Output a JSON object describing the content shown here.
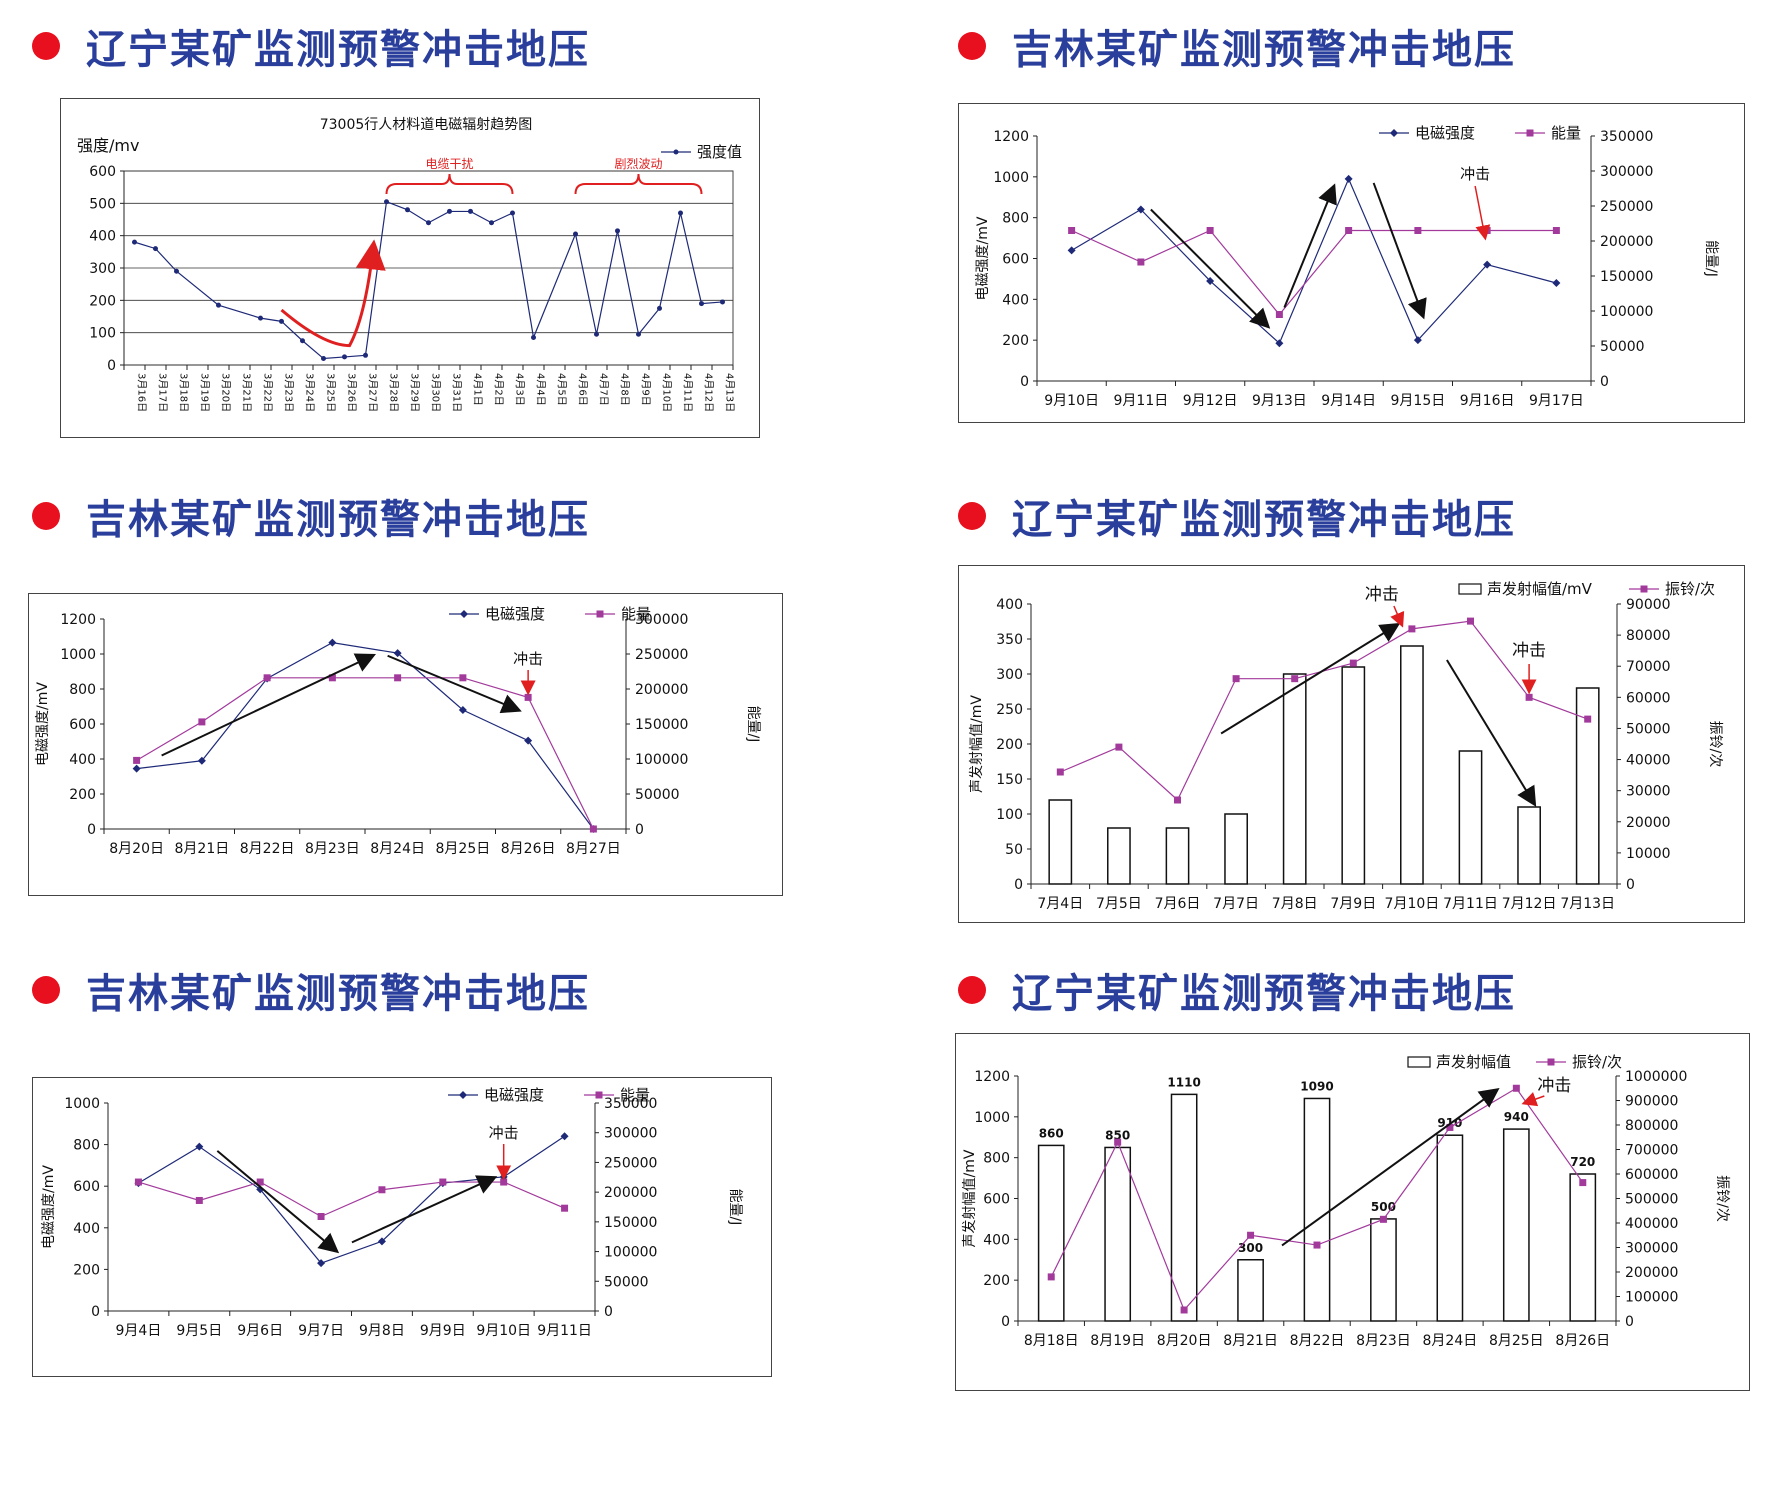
{
  "panels": [
    {
      "heading": "辽宁某矿监测预警冲击地压",
      "chart_data": {
        "type": "line",
        "title": "73005行人材料道电磁辐射趋势图",
        "ylabel": "强度/mv",
        "ylim": [
          0,
          600
        ],
        "yticks": [
          0,
          100,
          200,
          300,
          400,
          500,
          600
        ],
        "grid": true,
        "legend_position": "top-right",
        "categories": [
          "3月16日",
          "3月17日",
          "3月18日",
          "3月19日",
          "3月20日",
          "3月21日",
          "3月22日",
          "3月23日",
          "3月24日",
          "3月25日",
          "3月26日",
          "3月27日",
          "3月28日",
          "3月29日",
          "3月30日",
          "3月31日",
          "4月1日",
          "4月2日",
          "4月3日",
          "4月4日",
          "4月5日",
          "4月6日",
          "4月7日",
          "4月8日",
          "4月9日",
          "4月10日",
          "4月11日",
          "4月12日",
          "4月13日"
        ],
        "series": [
          {
            "name": "强度值",
            "color": "#1e2a78",
            "marker": "dot",
            "values": [
              380,
              360,
              290,
              null,
              185,
              null,
              145,
              135,
              75,
              20,
              25,
              30,
              505,
              480,
              440,
              475,
              475,
              440,
              470,
              85,
              null,
              405,
              95,
              415,
              95,
              175,
              470,
              190,
              195
            ]
          }
        ],
        "annotations": [
          {
            "text": "电缆干扰",
            "color": "#e02020",
            "from": 12,
            "to": 18
          },
          {
            "text": "剧烈波动",
            "color": "#e02020",
            "from": 21,
            "to": 27
          }
        ]
      }
    },
    {
      "heading": "吉林某矿监测预警冲击地压",
      "chart_data": {
        "type": "line",
        "ylabel": "电磁强度/mV",
        "y2label": "能量/J",
        "ylim": [
          0,
          1200
        ],
        "yticks": [
          0,
          200,
          400,
          600,
          800,
          1000,
          1200
        ],
        "y2lim": [
          0,
          350000
        ],
        "y2ticks": [
          0,
          50000,
          100000,
          150000,
          200000,
          250000,
          300000,
          350000
        ],
        "grid": false,
        "legend_position": "top-right",
        "categories": [
          "9月10日",
          "9月11日",
          "9月12日",
          "9月13日",
          "9月14日",
          "9月15日",
          "9月16日",
          "9月17日"
        ],
        "series": [
          {
            "name": "电磁强度",
            "axis": "left",
            "color": "#1e2a78",
            "marker": "diamond",
            "values": [
              640,
              840,
              490,
              185,
              990,
              200,
              570,
              480
            ]
          },
          {
            "name": "能量",
            "axis": "right",
            "color": "#a23a9c",
            "marker": "square",
            "values": [
              215000,
              170000,
              215000,
              95000,
              215000,
              215000,
              215000,
              215000
            ]
          }
        ],
        "impact_label": "冲击",
        "impact_index": 6
      }
    },
    {
      "heading": "吉林某矿监测预警冲击地压",
      "chart_data": {
        "type": "line",
        "ylabel": "电磁强度/mV",
        "y2label": "能量/J",
        "ylim": [
          0,
          1200
        ],
        "yticks": [
          0,
          200,
          400,
          600,
          800,
          1000,
          1200
        ],
        "y2lim": [
          0,
          300000
        ],
        "y2ticks": [
          0,
          50000,
          100000,
          150000,
          200000,
          250000,
          300000
        ],
        "grid": false,
        "legend_position": "top-right",
        "categories": [
          "8月20日",
          "8月21日",
          "8月22日",
          "8月23日",
          "8月24日",
          "8月25日",
          "8月26日",
          "8月27日"
        ],
        "series": [
          {
            "name": "电磁强度",
            "axis": "left",
            "color": "#1e2a78",
            "marker": "diamond",
            "values": [
              345,
              390,
              860,
              1065,
              1005,
              680,
              505,
              0
            ]
          },
          {
            "name": "能量",
            "axis": "right",
            "color": "#a23a9c",
            "marker": "square",
            "values": [
              98000,
              153000,
              216000,
              216000,
              216000,
              216000,
              188000,
              0
            ]
          }
        ],
        "impact_label": "冲击",
        "impact_index": 6
      }
    },
    {
      "heading": "辽宁某矿监测预警冲击地压",
      "chart_data": {
        "type": "bar",
        "ylabel": "声发射幅值/mV",
        "y2label": "振铃/次",
        "ylim": [
          0,
          400
        ],
        "yticks": [
          0,
          50,
          100,
          150,
          200,
          250,
          300,
          350,
          400
        ],
        "y2lim": [
          0,
          90000
        ],
        "y2ticks": [
          0,
          10000,
          20000,
          30000,
          40000,
          50000,
          60000,
          70000,
          80000,
          90000
        ],
        "grid": false,
        "legend_position": "top-right",
        "categories": [
          "7月4日",
          "7月5日",
          "7月6日",
          "7月7日",
          "7月8日",
          "7月9日",
          "7月10日",
          "7月11日",
          "7月12日",
          "7月13日"
        ],
        "series": [
          {
            "name": "声发射幅值/mV",
            "axis": "left",
            "kind": "bar",
            "values": [
              120,
              80,
              80,
              100,
              300,
              310,
              340,
              190,
              110,
              280
            ]
          },
          {
            "name": "振铃/次",
            "axis": "right",
            "kind": "line",
            "color": "#a23a9c",
            "marker": "square",
            "values": [
              36000,
              44000,
              27000,
              66000,
              66000,
              71000,
              82000,
              84500,
              60000,
              53000
            ]
          }
        ],
        "impact_label": "冲击",
        "impact_indices": [
          6,
          8
        ]
      }
    },
    {
      "heading": "吉林某矿监测预警冲击地压",
      "chart_data": {
        "type": "line",
        "ylabel": "电磁强度/mV",
        "y2label": "能量/J",
        "ylim": [
          0,
          1000
        ],
        "yticks": [
          0,
          200,
          400,
          600,
          800,
          1000
        ],
        "y2lim": [
          0,
          350000
        ],
        "y2ticks": [
          0,
          50000,
          100000,
          150000,
          200000,
          250000,
          300000,
          350000
        ],
        "grid": false,
        "legend_position": "top-right",
        "categories": [
          "9月4日",
          "9月5日",
          "9月6日",
          "9月7日",
          "9月8日",
          "9月9日",
          "9月10日",
          "9月11日"
        ],
        "series": [
          {
            "name": "电磁强度",
            "axis": "left",
            "color": "#1e2a78",
            "marker": "diamond",
            "values": [
              615,
              790,
              585,
              230,
              335,
              615,
              645,
              840
            ]
          },
          {
            "name": "能量",
            "axis": "right",
            "color": "#a23a9c",
            "marker": "square",
            "values": [
              217000,
              186000,
              217000,
              159000,
              204000,
              217000,
              217000,
              173000
            ]
          }
        ],
        "impact_label": "冲击",
        "impact_index": 6
      }
    },
    {
      "heading": "辽宁某矿监测预警冲击地压",
      "chart_data": {
        "type": "bar",
        "ylabel": "声发射幅值/mV",
        "y2label": "振铃/次",
        "ylim": [
          0,
          1200
        ],
        "yticks": [
          0,
          200,
          400,
          600,
          800,
          1000,
          1200
        ],
        "y2lim": [
          0,
          1000000
        ],
        "y2ticks": [
          0,
          100000,
          200000,
          300000,
          400000,
          500000,
          600000,
          700000,
          800000,
          900000,
          1000000
        ],
        "grid": false,
        "legend_position": "top-right",
        "categories": [
          "8月18日",
          "8月19日",
          "8月20日",
          "8月21日",
          "8月22日",
          "8月23日",
          "8月24日",
          "8月25日",
          "8月26日"
        ],
        "series": [
          {
            "name": "声发射幅值",
            "axis": "left",
            "kind": "bar",
            "values": [
              860,
              850,
              1110,
              300,
              1090,
              500,
              910,
              940,
              720
            ],
            "labels": [
              "860",
              "850",
              "1110",
              "300",
              "1090",
              "500",
              "910",
              "940",
              "720"
            ]
          },
          {
            "name": "振铃/次",
            "axis": "right",
            "kind": "line",
            "color": "#a23a9c",
            "marker": "square",
            "values": [
              180000,
              730000,
              45000,
              350000,
              310000,
              415000,
              790000,
              950000,
              565000
            ]
          }
        ],
        "impact_label": "冲击",
        "impact_index": 7
      }
    }
  ]
}
